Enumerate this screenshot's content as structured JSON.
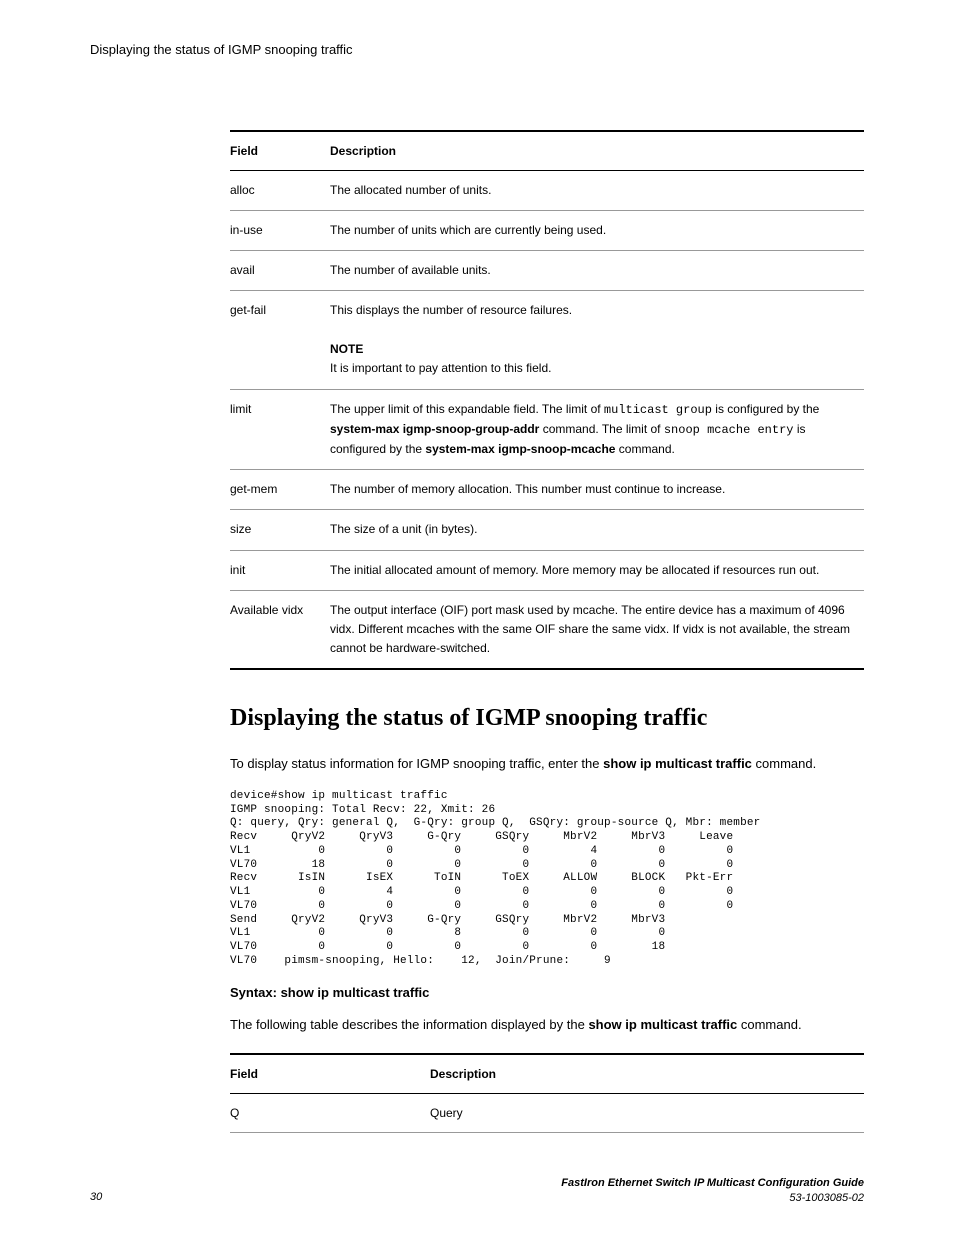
{
  "header": {
    "title": "Displaying the status of IGMP snooping traffic"
  },
  "table1": {
    "headers": {
      "field": "Field",
      "description": "Description"
    },
    "rows": [
      {
        "field": "alloc",
        "desc_plain": "The allocated number of units."
      },
      {
        "field": "in-use",
        "desc_plain": "The number of units which are currently being used."
      },
      {
        "field": "avail",
        "desc_plain": "The number of available units."
      },
      {
        "field": "get-fail",
        "desc_plain": "This displays the number of resource failures.",
        "note_label": "NOTE",
        "note_text": "It is important to pay attention to this field."
      },
      {
        "field": "limit",
        "desc_pre": "The upper limit of this expandable field. The limit of ",
        "mono1": "multicast group",
        "desc_mid1": " is configured by the ",
        "bold1": "system-max igmp-snoop-group-addr",
        "desc_mid2": " command. The limit of ",
        "mono2": "snoop mcache entry",
        "desc_mid3": " is configured by the ",
        "bold2": "system-max igmp-snoop-mcache",
        "desc_post": " command."
      },
      {
        "field": "get-mem",
        "desc_plain": "The number of memory allocation. This number must continue to increase."
      },
      {
        "field": "size",
        "desc_plain": "The size of a unit (in bytes)."
      },
      {
        "field": "init",
        "desc_plain": "The initial allocated amount of memory. More memory may be allocated if resources run out."
      },
      {
        "field": "Available vidx",
        "desc_plain": "The output interface (OIF) port mask used by mcache. The entire device has a maximum of 4096 vidx. Different mcaches with the same OIF share the same vidx. If vidx is not available, the stream cannot be hardware-switched."
      }
    ]
  },
  "section": {
    "heading": "Displaying the status of IGMP snooping traffic",
    "intro_pre": "To display status information for IGMP snooping traffic, enter the ",
    "intro_bold": "show ip multicast traffic",
    "intro_post": " command.",
    "code": "device#show ip multicast traffic\nIGMP snooping: Total Recv: 22, Xmit: 26\nQ: query, Qry: general Q,  G-Qry: group Q,  GSQry: group-source Q, Mbr: member\nRecv     QryV2     QryV3     G-Qry     GSQry     MbrV2     MbrV3     Leave\nVL1          0         0         0         0         4         0         0\nVL70        18         0         0         0         0         0         0\nRecv      IsIN      IsEX      ToIN      ToEX     ALLOW     BLOCK   Pkt-Err\nVL1          0         4         0         0         0         0         0\nVL70         0         0         0         0         0         0         0\nSend     QryV2     QryV3     G-Qry     GSQry     MbrV2     MbrV3\nVL1          0         0         8         0         0         0\nVL70         0         0         0         0         0        18\nVL70    pimsm-snooping, Hello:    12,  Join/Prune:     9",
    "syntax_label": "Syntax: ",
    "syntax_cmd": "show ip multicast traffic",
    "table_intro_pre": "The following table describes the information displayed by the ",
    "table_intro_bold": "show ip multicast traffic",
    "table_intro_post": " command."
  },
  "table2": {
    "headers": {
      "field": "Field",
      "description": "Description"
    },
    "rows": [
      {
        "field": "Q",
        "desc": "Query"
      }
    ]
  },
  "footer": {
    "page": "30",
    "doc_title": "FastIron Ethernet Switch IP Multicast Configuration Guide",
    "doc_num": "53-1003085-02"
  }
}
